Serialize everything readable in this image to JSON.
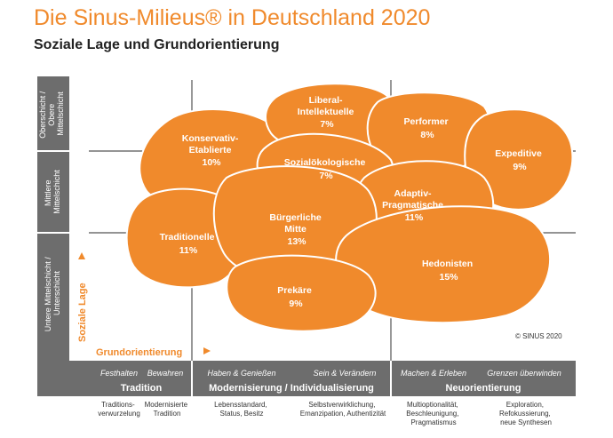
{
  "title": "Die Sinus-Milieus® in Deutschland 2020",
  "subtitle": "Soziale Lage und Grundorientierung",
  "axes": {
    "y_label": "Soziale Lage",
    "x_label": "Grundorientierung",
    "rows": [
      {
        "lines": [
          "Oberschicht /",
          "Obere",
          "Mittelschicht"
        ]
      },
      {
        "lines": [
          "Mittlere",
          "Mittelschicht"
        ]
      },
      {
        "lines": [
          "Untere Mittelschicht /",
          "Unterschicht"
        ]
      }
    ]
  },
  "milieus": [
    {
      "name_lines": [
        "Konservativ-",
        "Etablierte"
      ],
      "share": "10%"
    },
    {
      "name_lines": [
        "Liberal-",
        "Intellektuelle"
      ],
      "share": "7%"
    },
    {
      "name_lines": [
        "Performer"
      ],
      "share": "8%"
    },
    {
      "name_lines": [
        "Expeditive"
      ],
      "share": "9%"
    },
    {
      "name_lines": [
        "Sozialökologische"
      ],
      "share": "7%"
    },
    {
      "name_lines": [
        "Adaptiv-",
        "Pragmatische"
      ],
      "share": "11%"
    },
    {
      "name_lines": [
        "Traditionelle"
      ],
      "share": "11%"
    },
    {
      "name_lines": [
        "Bürgerliche",
        "Mitte"
      ],
      "share": "13%"
    },
    {
      "name_lines": [
        "Hedonisten"
      ],
      "share": "15%"
    },
    {
      "name_lines": [
        "Prekäre"
      ],
      "share": "9%"
    }
  ],
  "copyright": "© SINUS 2020",
  "bottom_bands": [
    {
      "label": "Tradition",
      "subs": [
        "Festhalten",
        "Bewahren"
      ],
      "notes": [
        [
          "Traditions-",
          "verwurzelung"
        ],
        [
          "Modernisierte",
          "Tradition"
        ]
      ]
    },
    {
      "label": "Modernisierung / Individualisierung",
      "subs": [
        "Haben & Genießen",
        "Sein & Verändern"
      ],
      "notes": [
        [
          "Lebensstandard,",
          "Status, Besitz"
        ],
        [
          "Selbstverwirklichung,",
          "Emanzipation, Authentizität"
        ]
      ]
    },
    {
      "label": "Neuorientierung",
      "subs": [
        "Machen & Erleben",
        "Grenzen überwinden"
      ],
      "notes": [
        [
          "Multioptionalität,",
          "Beschleunigung,",
          "Pragmatismus"
        ],
        [
          "Exploration,",
          "Refokussierung,",
          "neue Synthesen"
        ]
      ]
    }
  ],
  "colors": {
    "orange": "#f08a2c",
    "orange_light": "#f4a560",
    "gray": "#6d6d6d",
    "title": "#f08a2c"
  }
}
